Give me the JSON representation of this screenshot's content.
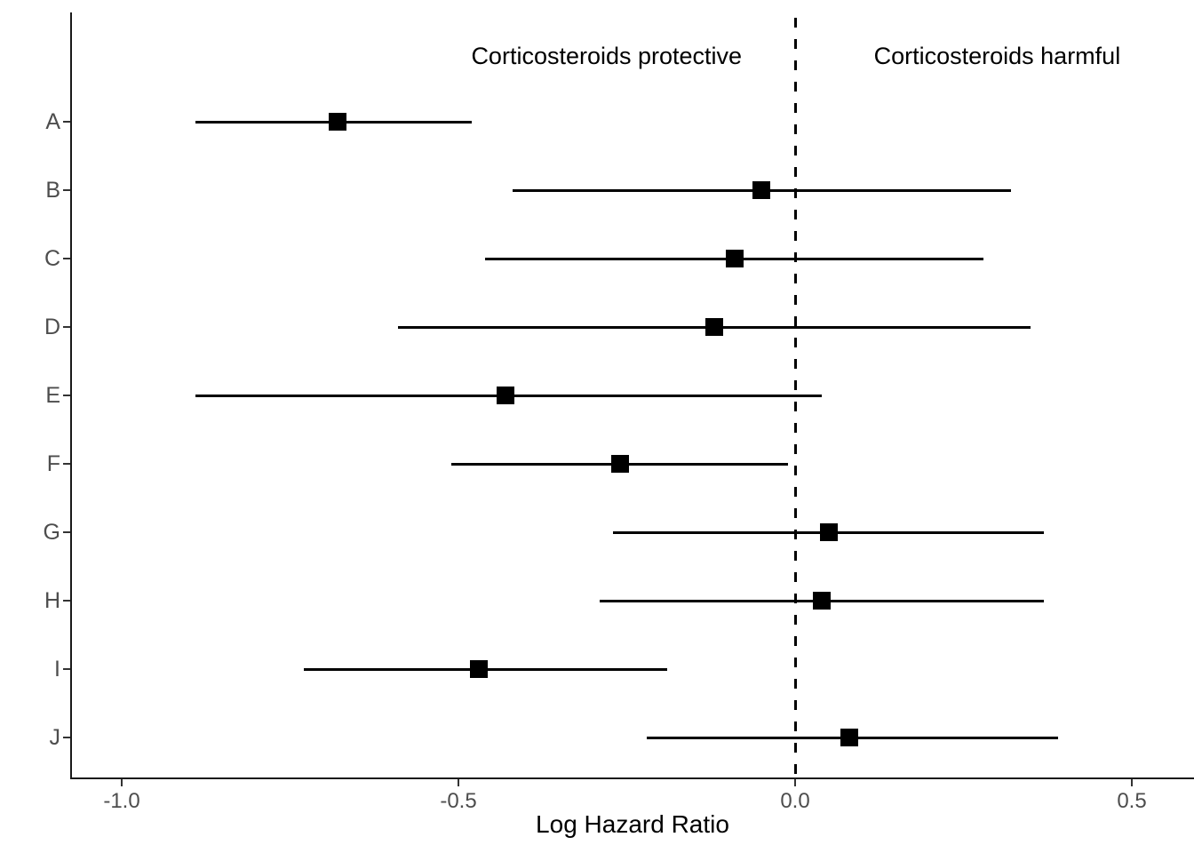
{
  "chart_data": {
    "type": "scatter",
    "subtype": "forest-plot",
    "title": "",
    "xlabel": "Log Hazard Ratio",
    "ylabel": "",
    "x_ticks": [
      -1.0,
      -0.5,
      0.0,
      0.5
    ],
    "x_tick_labels": [
      "-1.0",
      "-0.5",
      "0.0",
      "0.5"
    ],
    "xlim": [
      -1.08,
      0.59
    ],
    "grid": "off",
    "legend": "none",
    "marker": "square",
    "reference_line": 0.0,
    "colors": {
      "marker": "#000000",
      "ci_line": "#000000",
      "reference_line": "#000000",
      "axis_line": "#1a1a1a",
      "tick_label": "#4d4d4d",
      "annotation": "#000000"
    },
    "annotations": [
      {
        "text": "Corticosteroids protective",
        "x": -0.28
      },
      {
        "text": "Corticosteroids harmful",
        "x": 0.3
      }
    ],
    "categories": [
      "A",
      "B",
      "C",
      "D",
      "E",
      "F",
      "G",
      "H",
      "I",
      "J"
    ],
    "studies": [
      {
        "label": "A",
        "estimate": -0.68,
        "lower": -0.89,
        "upper": -0.48
      },
      {
        "label": "B",
        "estimate": -0.05,
        "lower": -0.42,
        "upper": 0.32
      },
      {
        "label": "C",
        "estimate": -0.09,
        "lower": -0.46,
        "upper": 0.28
      },
      {
        "label": "D",
        "estimate": -0.12,
        "lower": -0.59,
        "upper": 0.35
      },
      {
        "label": "E",
        "estimate": -0.43,
        "lower": -0.89,
        "upper": 0.04
      },
      {
        "label": "F",
        "estimate": -0.26,
        "lower": -0.51,
        "upper": -0.01
      },
      {
        "label": "G",
        "estimate": 0.05,
        "lower": -0.27,
        "upper": 0.37
      },
      {
        "label": "H",
        "estimate": 0.04,
        "lower": -0.29,
        "upper": 0.37
      },
      {
        "label": "I",
        "estimate": -0.47,
        "lower": -0.73,
        "upper": -0.19
      },
      {
        "label": "J",
        "estimate": 0.08,
        "lower": -0.22,
        "upper": 0.39
      }
    ]
  }
}
